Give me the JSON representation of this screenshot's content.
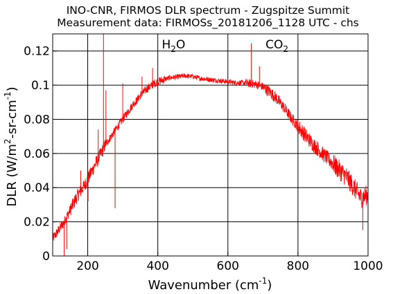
{
  "chart_data": {
    "type": "line",
    "title": "INO-CNR, FIRMOS DLR spectrum - Zugspitze Summit",
    "subtitle": "Measurement data: FIRMOSs_20181206_1128 UTC - chs",
    "xlabel": {
      "text": "Wavenumber (cm",
      "sup": "-1",
      "tail": ")"
    },
    "ylabel": {
      "text": "DLR (W/m",
      "sup1": "2",
      "mid": "-sr-cm",
      "sup2": "-1",
      "tail": ")"
    },
    "xlim": [
      100,
      1000
    ],
    "ylim": [
      0,
      0.13
    ],
    "xticks": [
      {
        "value": 200,
        "label": "200"
      },
      {
        "value": 400,
        "label": "400"
      },
      {
        "value": 600,
        "label": "600"
      },
      {
        "value": 800,
        "label": "800"
      },
      {
        "value": 1000,
        "label": "1000"
      }
    ],
    "yticks": [
      {
        "value": 0,
        "label": "0"
      },
      {
        "value": 0.02,
        "label": "0.02"
      },
      {
        "value": 0.04,
        "label": "0.04"
      },
      {
        "value": 0.06,
        "label": "0.06"
      },
      {
        "value": 0.08,
        "label": "0.08"
      },
      {
        "value": 0.1,
        "label": "0.1"
      },
      {
        "value": 0.12,
        "label": "0.12"
      }
    ],
    "grid": true,
    "annotations": [
      {
        "base": "H",
        "sub": "2",
        "tail": "O",
        "x": 445,
        "y": 0.1215
      },
      {
        "base": "CO",
        "sub": "2",
        "tail": "",
        "x": 740,
        "y": 0.1215
      }
    ],
    "series": [
      {
        "color": "#ff0000",
        "x": [
          100,
          110,
          120,
          130,
          140,
          150,
          160,
          170,
          180,
          190,
          200,
          210,
          220,
          230,
          240,
          250,
          260,
          270,
          280,
          290,
          300,
          310,
          320,
          330,
          340,
          350,
          360,
          370,
          380,
          390,
          400,
          420,
          440,
          460,
          480,
          500,
          520,
          540,
          560,
          580,
          600,
          620,
          640,
          660,
          680,
          700,
          720,
          740,
          760,
          780,
          800,
          820,
          840,
          860,
          880,
          900,
          920,
          940,
          960,
          980,
          1000
        ],
        "y": [
          0.01,
          0.013,
          0.016,
          0.019,
          0.023,
          0.027,
          0.031,
          0.035,
          0.038,
          0.041,
          0.045,
          0.049,
          0.053,
          0.057,
          0.061,
          0.065,
          0.068,
          0.071,
          0.074,
          0.077,
          0.08,
          0.083,
          0.086,
          0.089,
          0.091,
          0.094,
          0.096,
          0.098,
          0.0995,
          0.101,
          0.102,
          0.1035,
          0.1045,
          0.105,
          0.1055,
          0.105,
          0.104,
          0.1035,
          0.103,
          0.1025,
          0.102,
          0.1015,
          0.1015,
          0.101,
          0.1005,
          0.099,
          0.096,
          0.092,
          0.087,
          0.081,
          0.076,
          0.071,
          0.066,
          0.062,
          0.058,
          0.054,
          0.05,
          0.046,
          0.04,
          0.034,
          0.036
        ]
      }
    ],
    "spikes": [
      {
        "x": 133,
        "y": 0.0
      },
      {
        "x": 140,
        "y": 0.004
      },
      {
        "x": 180,
        "y": 0.05
      },
      {
        "x": 201,
        "y": 0.032
      },
      {
        "x": 230,
        "y": 0.074
      },
      {
        "x": 245,
        "y": 0.13
      },
      {
        "x": 252,
        "y": 0.097
      },
      {
        "x": 278,
        "y": 0.028
      },
      {
        "x": 300,
        "y": 0.101
      },
      {
        "x": 355,
        "y": 0.105
      },
      {
        "x": 385,
        "y": 0.11
      },
      {
        "x": 667,
        "y": 0.1245
      },
      {
        "x": 690,
        "y": 0.111
      },
      {
        "x": 985,
        "y": 0.015
      }
    ],
    "noise": [
      {
        "from": 100,
        "to": 150,
        "amp": 0.003
      },
      {
        "from": 150,
        "to": 250,
        "amp": 0.004
      },
      {
        "from": 250,
        "to": 420,
        "amp": 0.0025
      },
      {
        "from": 420,
        "to": 650,
        "amp": 0.0015
      },
      {
        "from": 650,
        "to": 700,
        "amp": 0.0025
      },
      {
        "from": 700,
        "to": 800,
        "amp": 0.0035
      },
      {
        "from": 800,
        "to": 900,
        "amp": 0.0045
      },
      {
        "from": 900,
        "to": 1000,
        "amp": 0.006
      }
    ]
  }
}
